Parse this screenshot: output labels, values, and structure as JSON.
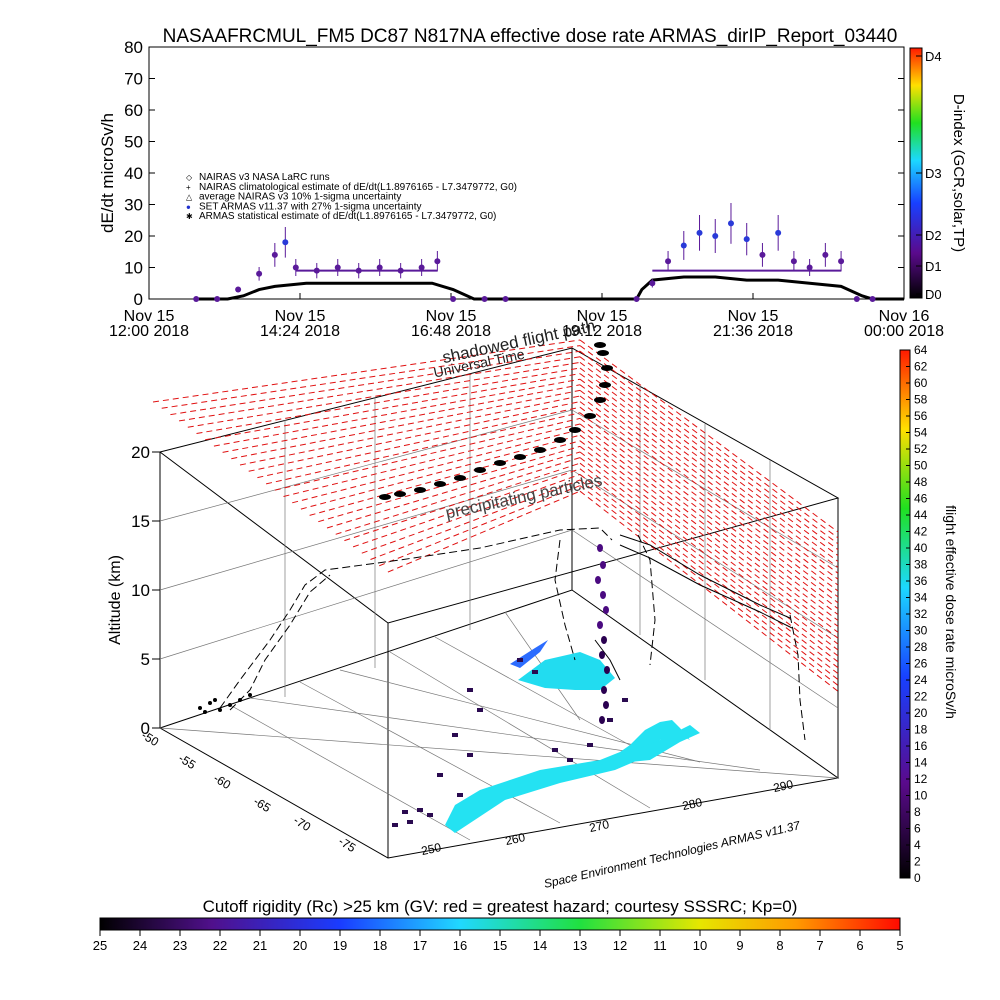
{
  "chart_data": [
    {
      "type": "scatter",
      "title": "NASAAFRCMUL_FM5 DC87 N817NA effective dose rate ARMAS_dirIP_Report_03440",
      "ylabel": "dE/dt microSv/h",
      "ylim": [
        0,
        80
      ],
      "yticks": [
        "0",
        "10",
        "20",
        "30",
        "40",
        "50",
        "60",
        "70",
        "80"
      ],
      "xticks": [
        {
          "line1": "Nov 15",
          "line2": "12:00 2018"
        },
        {
          "line1": "Nov 15",
          "line2": "14:24 2018"
        },
        {
          "line1": "Nov 15",
          "line2": "16:48 2018"
        },
        {
          "line1": "Nov 15",
          "line2": "19:12 2018"
        },
        {
          "line1": "Nov 15",
          "line2": "21:36 2018"
        },
        {
          "line1": "Nov 16",
          "line2": "00:00 2018"
        }
      ],
      "legend": [
        "NAIRAS v3 NASA LaRC runs",
        "NAIRAS climatological estimate of dE/dt(L1.8976165 - L7.3479772, G0)",
        "average NAIRAS v3 10% 1-sigma uncertainty",
        "SET ARMAS v11.37 with 27% 1-sigma uncertainty",
        "ARMAS statistical estimate of dE/dt(L1.8976165 - L7.3479772, G0)"
      ],
      "right_axis": {
        "label": "D-index (GCR,solar,TP)",
        "ticks": [
          "D0",
          "D1",
          "D2",
          "D3",
          "D4"
        ]
      },
      "series": [
        {
          "name": "SET ARMAS v11.37 with 27% 1-sigma uncertainty",
          "x": [
            "12:45",
            "13:05",
            "13:25",
            "13:45",
            "14:00",
            "14:10",
            "14:20",
            "14:40",
            "15:00",
            "15:20",
            "15:40",
            "16:00",
            "16:20",
            "16:35",
            "16:50",
            "17:20",
            "17:40",
            "19:45",
            "20:00",
            "20:15",
            "20:30",
            "20:45",
            "21:00",
            "21:15",
            "21:30",
            "21:45",
            "22:00",
            "22:15",
            "22:30",
            "22:45",
            "23:00",
            "23:15",
            "23:30"
          ],
          "y": [
            0,
            0,
            3,
            8,
            14,
            18,
            10,
            9,
            10,
            9,
            10,
            9,
            10,
            12,
            0,
            0,
            0,
            0,
            5,
            12,
            17,
            21,
            20,
            24,
            19,
            14,
            21,
            12,
            10,
            14,
            12,
            0,
            0
          ]
        },
        {
          "name": "NAIRAS climatological estimate of dE/dt(L1.8976165 - L7.3479772, G0)",
          "x": [
            "12:45",
            "13:15",
            "13:30",
            "13:45",
            "14:00",
            "14:30",
            "15:00",
            "15:30",
            "16:00",
            "16:30",
            "16:50",
            "17:10",
            "17:30",
            "19:45",
            "19:50",
            "20:00",
            "20:30",
            "21:00",
            "21:30",
            "22:00",
            "22:30",
            "23:00",
            "23:20",
            "23:30",
            "24:00"
          ],
          "y": [
            0,
            0,
            1,
            3,
            4,
            5,
            5,
            5,
            5,
            5,
            3,
            0,
            0,
            0,
            3,
            6,
            7,
            7,
            6,
            6,
            5,
            4,
            1,
            0,
            0
          ]
        }
      ]
    },
    {
      "type": "scatter",
      "title": "",
      "zlabel": "Altitude (km)",
      "zticks": [
        "0",
        "5",
        "10",
        "15",
        "20"
      ],
      "xticks": [
        "250",
        "260",
        "270",
        "280",
        "290"
      ],
      "yticks": [
        "-50",
        "-55",
        "-60",
        "-65",
        "-70",
        "-75"
      ],
      "annotations": [
        "shadowed flight path",
        "Universal Time",
        "precipitating particles"
      ],
      "colorbar": {
        "label": "flight effective dose rate microSv/h",
        "ticks": [
          "0",
          "2",
          "4",
          "6",
          "8",
          "10",
          "12",
          "14",
          "16",
          "18",
          "20",
          "22",
          "24",
          "26",
          "28",
          "30",
          "32",
          "34",
          "36",
          "38",
          "40",
          "42",
          "44",
          "46",
          "48",
          "50",
          "52",
          "54",
          "56",
          "58",
          "60",
          "62",
          "64"
        ]
      },
      "points": [
        {
          "lon": 252,
          "lat": -72,
          "alt": 12,
          "dose": 0
        },
        {
          "lon": 258,
          "lat": -70,
          "alt": 15,
          "dose": 0
        },
        {
          "lon": 265,
          "lat": -66,
          "alt": 18,
          "dose": 0
        },
        {
          "lon": 272,
          "lat": -62,
          "alt": 20,
          "dose": 0
        },
        {
          "lon": 278,
          "lat": -56,
          "alt": 22,
          "dose": 0
        },
        {
          "lon": 275,
          "lat": -60,
          "alt": 11,
          "dose": 6
        },
        {
          "lon": 273,
          "lat": -63,
          "alt": 9,
          "dose": 8
        },
        {
          "lon": 270,
          "lat": -66,
          "alt": 6,
          "dose": 6
        },
        {
          "lon": 268,
          "lat": -69,
          "alt": 4,
          "dose": 0
        },
        {
          "lon": 262,
          "lat": -72,
          "alt": 1,
          "dose": 0
        }
      ],
      "credit": "Space Environment Technologies ARMAS v11.37"
    },
    {
      "type": "heatmap",
      "title": "Cutoff rigidity (Rc) >25 km (GV: red = greatest hazard; courtesy SSSRC; Kp=0)",
      "ticks": [
        "25",
        "24",
        "23",
        "22",
        "21",
        "20",
        "19",
        "18",
        "17",
        "16",
        "15",
        "14",
        "13",
        "12",
        "11",
        "10",
        "9",
        "8",
        "7",
        "6",
        "5"
      ]
    }
  ]
}
